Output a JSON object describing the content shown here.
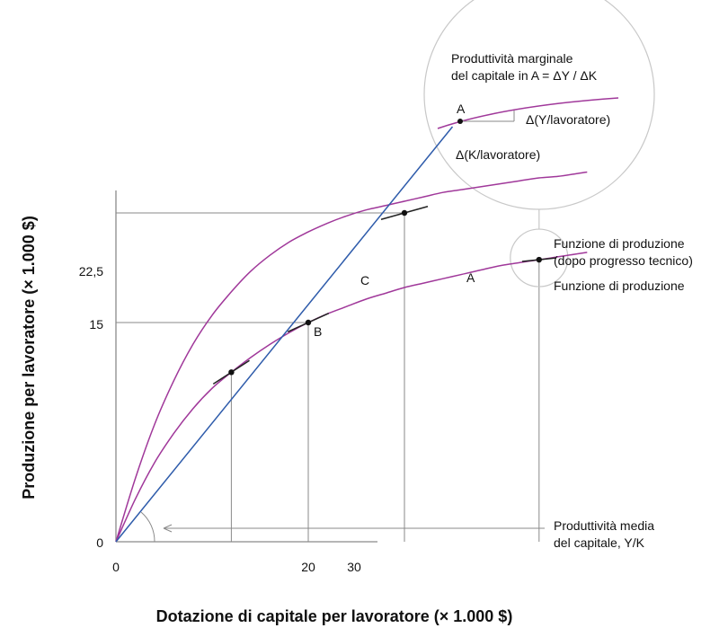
{
  "chart_data": {
    "type": "line",
    "xlabel": "Dotazione di capitale per lavoratore (× 1.000 $)",
    "ylabel": "Produzione per lavoratore (× 1.000 $)",
    "xlim": [
      0,
      54
    ],
    "ylim": [
      0,
      30
    ],
    "x_ticks": [
      "0",
      "20",
      "30"
    ],
    "y_ticks": [
      "0",
      "15",
      "22,5"
    ],
    "series": [
      {
        "name": "Funzione di produzione",
        "color": "#a0389a",
        "x": [
          0,
          2,
          4,
          6,
          8,
          10,
          12,
          14,
          16,
          18,
          20,
          22,
          24,
          26,
          28,
          30,
          32,
          34,
          36,
          38,
          40,
          42,
          44,
          46,
          48,
          49
        ],
        "y": [
          0,
          2.9,
          5.4,
          7.4,
          9.1,
          10.5,
          11.6,
          12.6,
          13.5,
          14.3,
          15.0,
          15.6,
          16.1,
          16.6,
          17.0,
          17.4,
          17.7,
          18.0,
          18.3,
          18.6,
          18.9,
          19.1,
          19.3,
          19.5,
          19.7,
          19.8
        ]
      },
      {
        "name": "Funzione di produzione (dopo progresso tecnico)",
        "color": "#a0389a",
        "x": [
          0,
          2,
          4,
          6,
          8,
          10,
          12,
          14,
          16,
          18,
          20,
          22,
          24,
          26,
          28,
          30,
          32,
          34,
          36,
          38,
          40,
          42,
          44,
          46,
          48,
          49
        ],
        "y": [
          0,
          4.3,
          8.0,
          11.0,
          13.5,
          15.5,
          17.1,
          18.5,
          19.6,
          20.5,
          21.2,
          21.8,
          22.3,
          22.7,
          23.0,
          23.3,
          23.6,
          23.9,
          24.1,
          24.3,
          24.5,
          24.7,
          24.9,
          25.0,
          25.2,
          25.3
        ]
      },
      {
        "name": "Produttività media del capitale, Y/K",
        "color": "#2f5cab",
        "x": [
          0,
          35
        ],
        "y": [
          0,
          28.4
        ]
      }
    ],
    "points": [
      {
        "label": "",
        "x": 12,
        "y": 11.6
      },
      {
        "label": "B",
        "x": 20,
        "y": 15
      },
      {
        "label": "C",
        "x": 30,
        "y": 22.5
      },
      {
        "label": "A",
        "x": 44,
        "y": 19.3
      }
    ],
    "annotations": {
      "production_label": "Funzione di produzione",
      "after_tech_label_1": "Funzione di produzione",
      "after_tech_label_2": "(dopo progresso tecnico)",
      "avg_product_label_1": "Produttività media",
      "avg_product_label_2": "del capitale, Y/K"
    },
    "inset": {
      "title_1": "Produttività marginale",
      "title_2": "del capitale in A = ΔY / ΔK",
      "point_label": "A",
      "dy_label": "Δ(Y/lavoratore)",
      "dx_label": "Δ(K/lavoratore)"
    },
    "colors": {
      "curve": "#a0389a",
      "ray": "#2f5cab",
      "guide": "#8a8a8a",
      "axis": "#8a8a8a",
      "inset_border": "#c8c8c8"
    }
  }
}
